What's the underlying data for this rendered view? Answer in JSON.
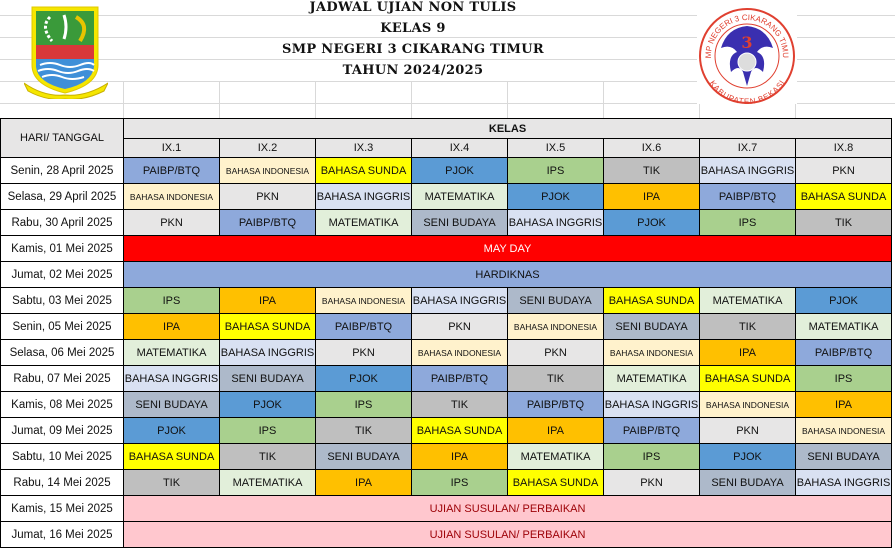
{
  "title": {
    "line1": "JADWAL UJIAN NON TULIS",
    "line2": "KELAS 9",
    "line3": "SMP NEGERI 3 CIKARANG TIMUR",
    "line4": "TAHUN 2024/2025"
  },
  "logos": {
    "left": "SWATANTRA WIBAWA MUKTI",
    "right_top": "SMP NEGERI 3 CIKARANG TIMUR",
    "right_bottom": "KABUPATEN BEKASI",
    "right_number": "3"
  },
  "table": {
    "day_header": "HARI/ TANGGAL",
    "group_header": "KELAS",
    "classes": [
      "IX.1",
      "IX.2",
      "IX.3",
      "IX.4",
      "IX.5",
      "IX.6",
      "IX.7",
      "IX.8"
    ],
    "subject_colors": {
      "PAIBP/BTQ": "#8EA9DB",
      "BAHASA INDONESIA": "#FFF2CC",
      "BAHASA SUNDA": "#FFFF00",
      "PJOK": "#5B9BD5",
      "IPS": "#A9D08E",
      "TIK": "#BFBFBF",
      "BAHASA INGGRIS": "#D9E1F2",
      "PKN": "#E7E6E6",
      "MATEMATIKA": "#E2EFDA",
      "SENI BUDAYA": "#ADB9CA",
      "IPA": "#FFC000"
    },
    "rows": [
      {
        "day": "Senin, 28 April 2025",
        "cells": [
          "PAIBP/BTQ",
          "BAHASA INDONESIA",
          "BAHASA SUNDA",
          "PJOK",
          "IPS",
          "TIK",
          "BAHASA INGGRIS",
          "PKN"
        ]
      },
      {
        "day": "Selasa, 29 April 2025",
        "cells": [
          "BAHASA INDONESIA",
          "PKN",
          "BAHASA INGGRIS",
          "MATEMATIKA",
          "PJOK",
          "IPA",
          "PAIBP/BTQ",
          "BAHASA SUNDA"
        ]
      },
      {
        "day": "Rabu, 30 April 2025",
        "cells": [
          "PKN",
          "PAIBP/BTQ",
          "MATEMATIKA",
          "SENI BUDAYA",
          "BAHASA INGGRIS",
          "PJOK",
          "IPS",
          "TIK"
        ]
      },
      {
        "day": "Kamis, 01 Mei 2025",
        "merged": "MAY DAY",
        "bg": "#FF0000",
        "fg": "#FFFFFF"
      },
      {
        "day": "Jumat, 02 Mei 2025",
        "merged": "HARDIKNAS",
        "bg": "#8EA9DB",
        "fg": "#111111"
      },
      {
        "day": "Sabtu, 03 Mei 2025",
        "cells": [
          "IPS",
          "IPA",
          "BAHASA INDONESIA",
          "BAHASA INGGRIS",
          "SENI BUDAYA",
          "BAHASA SUNDA",
          "MATEMATIKA",
          "PJOK"
        ]
      },
      {
        "day": "Senin, 05 Mei 2025",
        "cells": [
          "IPA",
          "BAHASA SUNDA",
          "PAIBP/BTQ",
          "PKN",
          "BAHASA INDONESIA",
          "SENI BUDAYA",
          "TIK",
          "MATEMATIKA"
        ]
      },
      {
        "day": "Selasa, 06 Mei 2025",
        "cells": [
          "MATEMATIKA",
          "BAHASA INGGRIS",
          "PKN",
          "BAHASA INDONESIA",
          "PKN",
          "BAHASA INDONESIA",
          "IPA",
          "PAIBP/BTQ"
        ]
      },
      {
        "day": "Rabu, 07 Mei 2025",
        "cells": [
          "BAHASA INGGRIS",
          "SENI BUDAYA",
          "PJOK",
          "PAIBP/BTQ",
          "TIK",
          "MATEMATIKA",
          "BAHASA SUNDA",
          "IPS"
        ]
      },
      {
        "day": "Kamis, 08 Mei 2025",
        "cells": [
          "SENI BUDAYA",
          "PJOK",
          "IPS",
          "TIK",
          "PAIBP/BTQ",
          "BAHASA INGGRIS",
          "BAHASA INDONESIA",
          "IPA"
        ]
      },
      {
        "day": "Jumat, 09 Mei 2025",
        "cells": [
          "PJOK",
          "IPS",
          "TIK",
          "BAHASA SUNDA",
          "IPA",
          "PAIBP/BTQ",
          "PKN",
          "BAHASA INDONESIA"
        ]
      },
      {
        "day": "Sabtu, 10 Mei 2025",
        "cells": [
          "BAHASA SUNDA",
          "TIK",
          "SENI BUDAYA",
          "IPA",
          "MATEMATIKA",
          "IPS",
          "PJOK",
          "SENI BUDAYA"
        ]
      },
      {
        "day": "Rabu, 14 Mei 2025",
        "cells": [
          "TIK",
          "MATEMATIKA",
          "IPA",
          "IPS",
          "BAHASA SUNDA",
          "PKN",
          "SENI BUDAYA",
          "BAHASA INGGRIS"
        ]
      },
      {
        "day": "Kamis, 15 Mei 2025",
        "merged": "UJIAN SUSULAN/ PERBAIKAN",
        "bg": "#FFC7CE",
        "fg": "#9C0006"
      },
      {
        "day": "Jumat, 16 Mei 2025",
        "merged": "UJIAN SUSULAN/ PERBAIKAN",
        "bg": "#FFC7CE",
        "fg": "#9C0006"
      }
    ]
  }
}
